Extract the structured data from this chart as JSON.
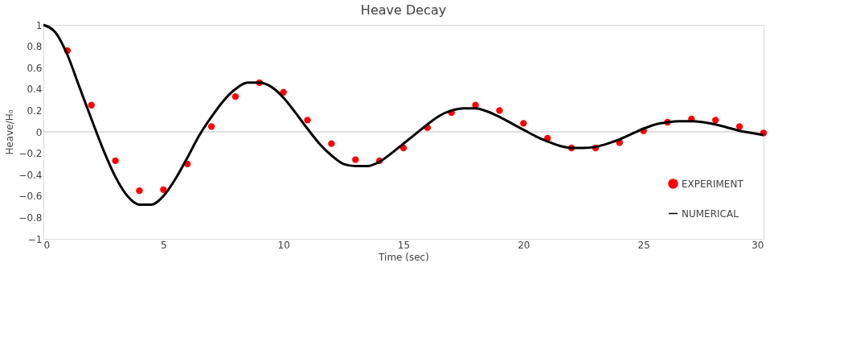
{
  "chart_data": {
    "type": "line",
    "title": "Heave Decay",
    "xlabel": "Time (sec)",
    "ylabel": "Heave/H₀",
    "xlim": [
      0,
      30
    ],
    "xticks": [
      0,
      5,
      10,
      15,
      20,
      25,
      30
    ],
    "ylim": [
      -1,
      1
    ],
    "yticks": [
      -1,
      -0.8,
      -0.6,
      -0.4,
      -0.2,
      0,
      0.2,
      0.4,
      0.6,
      0.8,
      1
    ],
    "grid": false,
    "legend": "bottom right",
    "ref_lines": [
      {
        "axis": "y",
        "value": 0,
        "color": "#bfbfbf"
      }
    ],
    "series": [
      {
        "name": "EXPERIMENT",
        "type": "scatter",
        "marker": "circle",
        "color": "#ff0000",
        "x": [
          1,
          2,
          3,
          4,
          5,
          6,
          7,
          8,
          9,
          10,
          11,
          12,
          13,
          14,
          15,
          16,
          17,
          18,
          19,
          20,
          21,
          22,
          23,
          24,
          25,
          26,
          27,
          28,
          29,
          30
        ],
        "values": [
          0.76,
          0.25,
          -0.27,
          -0.55,
          -0.54,
          -0.3,
          0.05,
          0.33,
          0.46,
          0.37,
          0.11,
          -0.11,
          -0.26,
          -0.27,
          -0.15,
          0.04,
          0.18,
          0.25,
          0.2,
          0.08,
          -0.06,
          -0.15,
          -0.15,
          -0.1,
          0.01,
          0.09,
          0.12,
          0.11,
          0.05,
          -0.01
        ]
      },
      {
        "name": "NUMERICAL",
        "line_style": "solid",
        "color": "#000000",
        "x": [
          0,
          0.5,
          1,
          1.5,
          2,
          2.5,
          3,
          3.5,
          4,
          4.5,
          5,
          5.5,
          6,
          6.5,
          7,
          7.5,
          8,
          8.5,
          9,
          9.5,
          10,
          10.5,
          11,
          11.5,
          12,
          12.5,
          13,
          13.5,
          14,
          14.5,
          15,
          15.5,
          16,
          16.5,
          17,
          17.5,
          18,
          18.5,
          19,
          19.5,
          20,
          20.5,
          21,
          21.5,
          22,
          22.5,
          23,
          23.5,
          24,
          24.5,
          25,
          25.5,
          26,
          26.5,
          27,
          27.5,
          28,
          28.5,
          29,
          29.5,
          30
        ],
        "values": [
          1,
          0.93,
          0.72,
          0.42,
          0.12,
          -0.17,
          -0.42,
          -0.6,
          -0.68,
          -0.68,
          -0.6,
          -0.44,
          -0.24,
          -0.03,
          0.14,
          0.29,
          0.4,
          0.46,
          0.46,
          0.42,
          0.32,
          0.18,
          0.03,
          -0.11,
          -0.22,
          -0.3,
          -0.32,
          -0.32,
          -0.28,
          -0.2,
          -0.11,
          -0.02,
          0.07,
          0.15,
          0.2,
          0.22,
          0.22,
          0.19,
          0.14,
          0.08,
          0.02,
          -0.04,
          -0.09,
          -0.13,
          -0.15,
          -0.15,
          -0.14,
          -0.11,
          -0.07,
          -0.02,
          0.03,
          0.07,
          0.09,
          0.1,
          0.1,
          0.09,
          0.07,
          0.04,
          0.01,
          -0.01,
          -0.03
        ]
      }
    ]
  }
}
